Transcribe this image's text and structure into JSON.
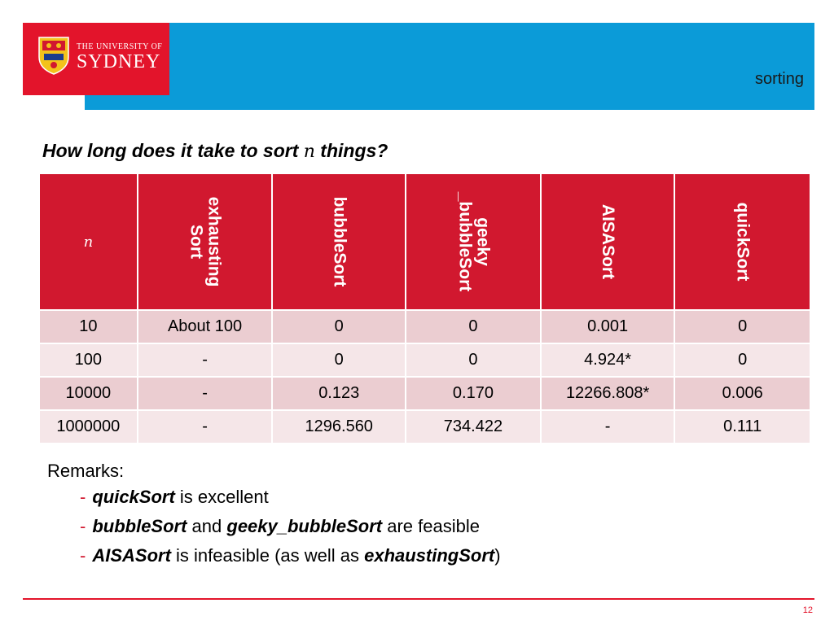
{
  "header": {
    "logo_small": "THE UNIVERSITY OF",
    "logo_big": "SYDNEY",
    "section": "sorting",
    "brand_red": "#e3142b",
    "brand_blue": "#0b9bd8"
  },
  "question": {
    "before": "How long does it take to sort ",
    "var": "n",
    "after": " things?"
  },
  "table": {
    "headers": [
      "n",
      "exhausting\nSort",
      "bubbleSort",
      "geeky\n_bubbleSort",
      "AISASort",
      "quickSort"
    ],
    "rows": [
      [
        "10",
        "About 100",
        "0",
        "0",
        "0.001",
        "0"
      ],
      [
        "100",
        "-",
        "0",
        "0",
        "4.924*",
        "0"
      ],
      [
        "10000",
        "-",
        "0.123",
        "0.170",
        "12266.808*",
        "0.006"
      ],
      [
        "1000000",
        "-",
        "1296.560",
        "734.422",
        "-",
        "0.111"
      ]
    ]
  },
  "remarks": {
    "title": "Remarks:",
    "item1_b": "quickSort",
    "item1_t": " is excellent",
    "item2_b1": "bubbleSort",
    "item2_t1": " and ",
    "item2_b2": "geeky_bubbleSort",
    "item2_t2": " are feasible",
    "item3_b1": "AISASort",
    "item3_t1": " is infeasible (as well as ",
    "item3_b2": "exhaustingSort",
    "item3_t2": ")"
  },
  "footer": {
    "page": "12"
  }
}
